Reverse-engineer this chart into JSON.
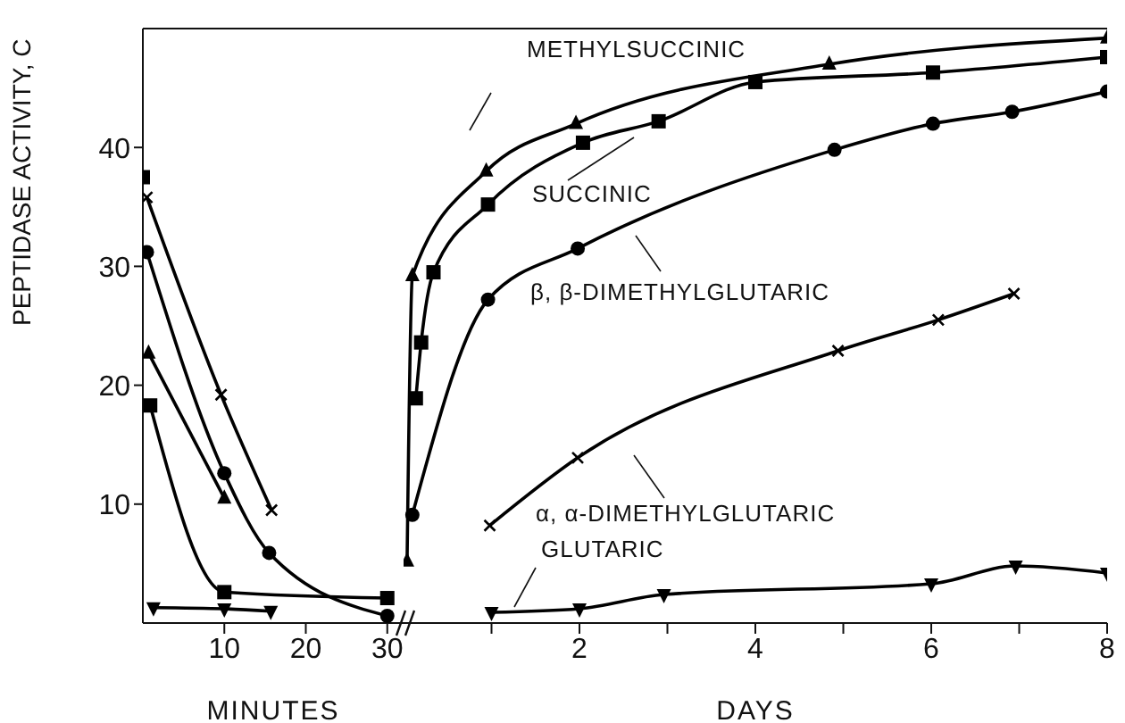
{
  "chart_data": [
    {
      "type": "line",
      "ylabel": "PEPTIDASE ACTIVITY, C",
      "xlabel": "MINUTES",
      "xlim": [
        0,
        32
      ],
      "xticks": [
        10,
        20,
        30
      ],
      "ylim": [
        0,
        50
      ],
      "yticks": [
        10,
        20,
        30,
        40
      ],
      "line_style": "solid",
      "series": [
        {
          "type": "scatter",
          "color": "#000000",
          "marker": "square",
          "x": [
            0
          ],
          "values": [
            37.5
          ]
        },
        {
          "color": "#000000",
          "marker": "cross",
          "x": [
            0.5,
            9.6,
            15.8
          ],
          "values": [
            35.8,
            19.2,
            9.5
          ]
        },
        {
          "color": "#000000",
          "marker": "circle",
          "x": [
            0.5,
            10,
            15.5,
            30
          ],
          "values": [
            31.2,
            12.6,
            5.9,
            0.6
          ]
        },
        {
          "color": "#000000",
          "marker": "triangle",
          "x": [
            0.7,
            10
          ],
          "values": [
            22.7,
            10.5
          ]
        },
        {
          "color": "#000000",
          "marker": "square",
          "x": [
            0.9,
            10,
            30
          ],
          "values": [
            18.3,
            2.6,
            2.1
          ]
        },
        {
          "color": "#000000",
          "marker": "triangle-down",
          "x": [
            1.3,
            10,
            15.7
          ],
          "values": [
            1.3,
            1.2,
            1.0
          ]
        }
      ]
    },
    {
      "type": "line",
      "xlabel": "DAYS",
      "xlim": [
        0,
        8
      ],
      "xticks": [
        {
          "value": 1,
          "label": null
        },
        2,
        {
          "value": 3,
          "label": null
        },
        4,
        {
          "value": 5,
          "label": null
        },
        6,
        {
          "value": 7,
          "label": null
        },
        8
      ],
      "ylim": [
        0,
        50
      ],
      "tick_labels": "x",
      "line_style": "solid",
      "annotations": [
        "METHYLSUCCINIC",
        "SUCCINIC",
        "β, β-DIMETHYLGLUTARIC",
        "α, α-DIMETHYLGLUTARIC",
        "GLUTARIC"
      ],
      "series": [
        {
          "color": "#000000",
          "marker": "triangle",
          "x": [
            0.04,
            0.1,
            0.94,
            1.96,
            4.84,
            8
          ],
          "values": [
            5.2,
            29.2,
            38,
            42,
            47,
            49.2
          ]
        },
        {
          "color": "#000000",
          "marker": "square",
          "x": [
            0.14,
            0.2,
            0.34,
            0.96,
            2.04,
            2.9,
            4,
            6.02,
            8
          ],
          "values": [
            18.9,
            23.6,
            29.5,
            35.2,
            40.4,
            42.2,
            45.5,
            46.3,
            47.6
          ]
        },
        {
          "color": "#000000",
          "marker": "circle",
          "x": [
            0.1,
            0.96,
            1.98,
            4.9,
            6.02,
            6.92,
            8
          ],
          "values": [
            9.1,
            27.2,
            31.5,
            39.8,
            42,
            43,
            44.7
          ]
        },
        {
          "color": "#000000",
          "marker": "cross",
          "x": [
            0.98,
            1.98,
            4.94,
            6.08,
            6.94
          ],
          "values": [
            8.2,
            13.9,
            22.9,
            25.5,
            27.7
          ]
        },
        {
          "color": "#000000",
          "marker": "triangle-down",
          "x": [
            1,
            2,
            2.96,
            6,
            6.96,
            8
          ],
          "values": [
            0.9,
            1.2,
            2.4,
            3.3,
            4.8,
            4.2
          ]
        }
      ]
    }
  ]
}
